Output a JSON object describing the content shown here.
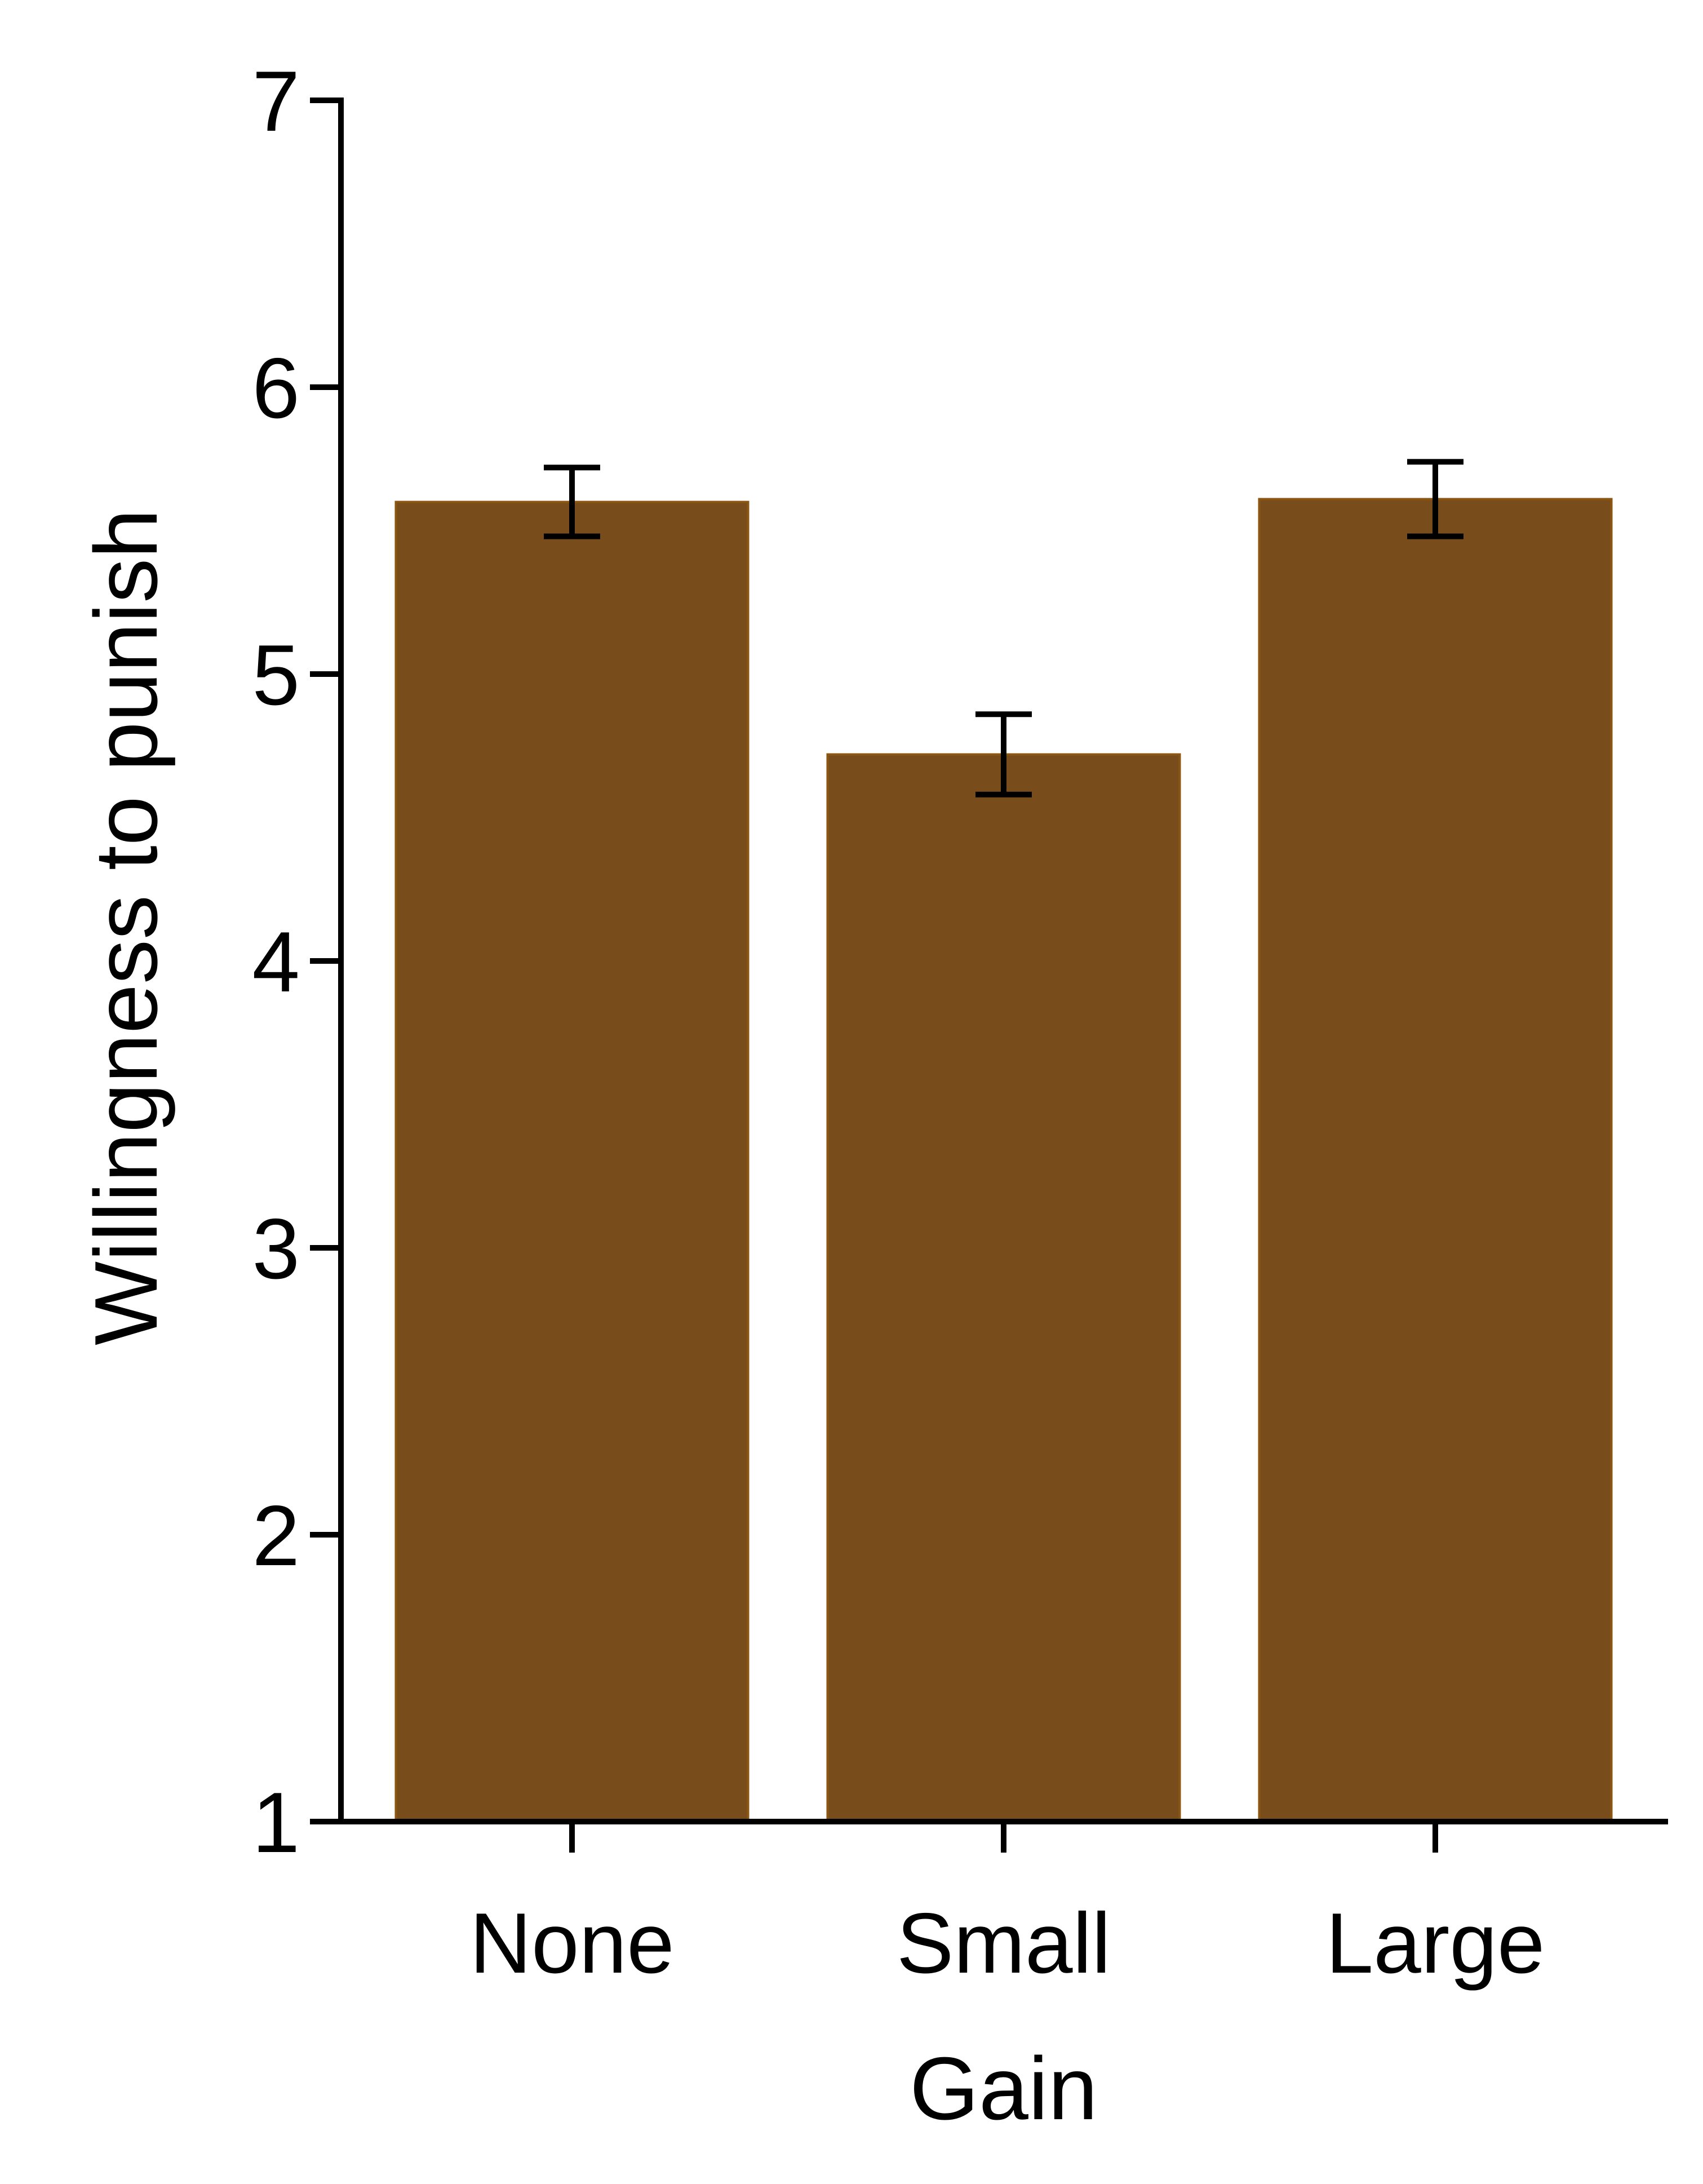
{
  "chart_data": {
    "type": "bar",
    "categories": [
      "None",
      "Small",
      "Large"
    ],
    "values": [
      5.6,
      4.72,
      5.61
    ],
    "error": [
      0.12,
      0.14,
      0.13
    ],
    "xlabel": "Gain",
    "ylabel": "Willingness to punish",
    "ylim": [
      1,
      7
    ],
    "yticks": [
      "1",
      "2",
      "3",
      "4",
      "5",
      "6",
      "7"
    ],
    "grid": false,
    "legend": "none",
    "colors": {
      "bar": "#784d1b",
      "bar_edge": "#8a5611",
      "axis": "#000000"
    }
  }
}
